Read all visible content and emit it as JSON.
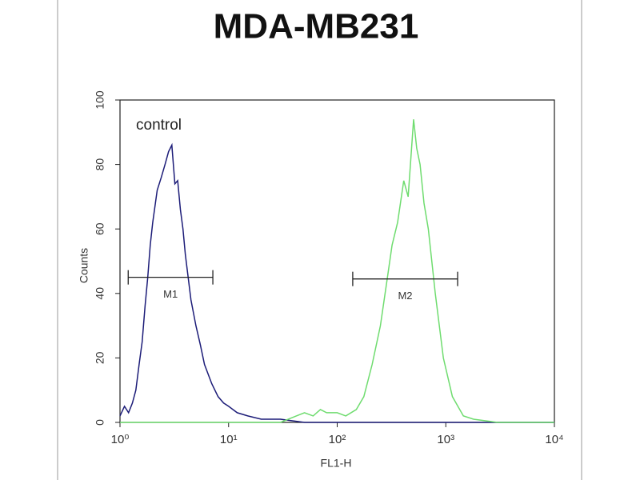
{
  "chart_data": {
    "type": "histogram-line",
    "title": "MDA-MB231",
    "xlabel": "FL1-H",
    "ylabel": "Counts",
    "annotation": "control",
    "xscale": "log",
    "xlim": [
      1,
      10000
    ],
    "ylim": [
      0,
      100
    ],
    "xticks": [
      {
        "value": 1,
        "label": "10⁰"
      },
      {
        "value": 10,
        "label": "10¹"
      },
      {
        "value": 100,
        "label": "10²"
      },
      {
        "value": 1000,
        "label": "10³"
      },
      {
        "value": 10000,
        "label": "10⁴"
      }
    ],
    "yticks": [
      0,
      20,
      40,
      60,
      80,
      100
    ],
    "series": [
      {
        "color": "#1c1c78",
        "x": [
          1.0,
          1.1,
          1.2,
          1.3,
          1.4,
          1.5,
          1.6,
          1.7,
          1.8,
          1.9,
          2.0,
          2.2,
          2.4,
          2.6,
          2.8,
          3.0,
          3.2,
          3.4,
          3.6,
          3.8,
          4.0,
          4.5,
          5.0,
          5.5,
          6,
          7,
          8,
          9,
          10,
          12,
          15,
          20,
          30,
          50,
          100,
          1000,
          10000
        ],
        "values": [
          2,
          5,
          3,
          6,
          10,
          18,
          25,
          36,
          45,
          55,
          62,
          72,
          76,
          80,
          84,
          86,
          74,
          75,
          66,
          60,
          52,
          38,
          30,
          24,
          18,
          12,
          8,
          6,
          5,
          3,
          2,
          1,
          1,
          0,
          0,
          0,
          0
        ]
      },
      {
        "color": "#6fdc6f",
        "x": [
          1,
          10,
          30,
          42,
          50,
          60,
          70,
          80,
          100,
          120,
          150,
          176,
          210,
          250,
          290,
          320,
          360,
          410,
          450,
          505,
          540,
          580,
          630,
          690,
          800,
          950,
          1150,
          1450,
          1800,
          3000,
          10000
        ],
        "values": [
          0,
          0,
          0,
          2,
          3,
          2,
          4,
          3,
          3,
          2,
          4,
          8,
          18,
          30,
          45,
          55,
          62,
          75,
          70,
          94,
          85,
          80,
          68,
          60,
          40,
          20,
          8,
          2,
          1,
          0,
          0
        ]
      }
    ],
    "markers": [
      {
        "label": "M1",
        "range": [
          1.19,
          7.16
        ],
        "level": 45
      },
      {
        "label": "M2",
        "range": [
          139,
          1285
        ],
        "level": 44.5
      }
    ]
  }
}
